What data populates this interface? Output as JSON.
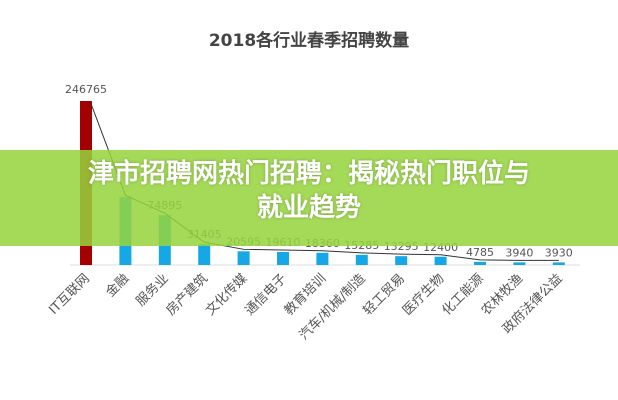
{
  "chart_data": {
    "type": "bar",
    "title": "2018各行业春季招聘数量",
    "categories": [
      "IT互联网",
      "金融",
      "服务业",
      "房产建筑",
      "文化传媒",
      "通信电子",
      "教育培训",
      "汽车/机械/制造",
      "轻工贸易",
      "医疗生物",
      "化工能源",
      "农林牧渔",
      "政府法律公益"
    ],
    "values": [
      246765,
      102000,
      74895,
      31405,
      20595,
      19610,
      18360,
      15285,
      13295,
      12400,
      4785,
      3940,
      3930
    ],
    "data_labels": [
      "246765",
      "",
      "74895",
      "31405",
      "20595",
      "19610",
      "18360",
      "15285",
      "13295",
      "12400",
      "4785",
      "3940",
      "3930"
    ],
    "ylim": [
      0,
      246765
    ],
    "overlay_line": true,
    "grid": false,
    "colors": {
      "first_bar": "#a50000",
      "bars": "#16a8e6",
      "line": "#333333",
      "banner": "#96d43c"
    }
  },
  "banner": {
    "text": "津市招聘网热门招聘：揭秘热门职位与就业趋势"
  }
}
